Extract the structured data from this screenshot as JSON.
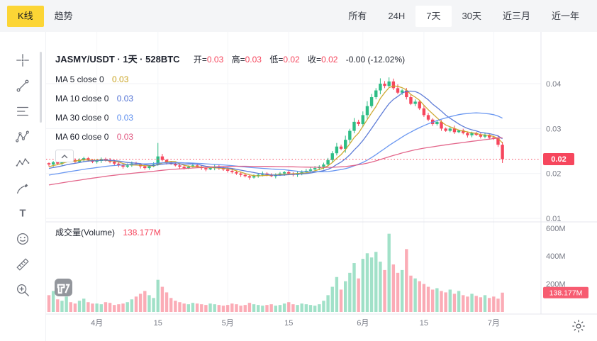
{
  "colors": {
    "up": "#2ebd85",
    "down": "#f6465d",
    "accent": "#fcd535"
  },
  "topbar": {
    "chart_tabs": [
      {
        "label": "K线"
      },
      {
        "label": "趋势"
      }
    ],
    "selected_chart_tab": "K线",
    "range_tabs": [
      {
        "label": "所有"
      },
      {
        "label": "24H"
      },
      {
        "label": "7天"
      },
      {
        "label": "30天"
      },
      {
        "label": "近三月"
      },
      {
        "label": "近一年"
      }
    ],
    "selected_range": "7天"
  },
  "header": {
    "symbol": "JASMY/USDT · 1天 · 528BTC",
    "ohlc": [
      {
        "label": "开=",
        "value": "0.03"
      },
      {
        "label": "高=",
        "value": "0.03"
      },
      {
        "label": "低=",
        "value": "0.02"
      },
      {
        "label": "收=",
        "value": "0.02"
      }
    ],
    "change": "-0.00 (-12.02%)"
  },
  "indicators": [
    {
      "label": "MA 5 close 0",
      "value": "0.03",
      "color": "#c9a21f"
    },
    {
      "label": "MA 10 close 0",
      "value": "0.03",
      "color": "#4e6fd3"
    },
    {
      "label": "MA 30 close 0",
      "value": "0.03",
      "color": "#5b8def"
    },
    {
      "label": "MA 60 close 0",
      "value": "0.03",
      "color": "#e0557e"
    }
  ],
  "volume_header": {
    "label": "成交量(Volume)",
    "value": "138.177M"
  },
  "price_axis": {
    "ticks": [
      "0.04",
      "0.03",
      "0.02",
      "0.01"
    ],
    "badge": "0.02"
  },
  "volume_axis": {
    "ticks": [
      "600M",
      "400M",
      "200M"
    ],
    "badge": "138.177M"
  },
  "toolbar": {
    "icons": [
      "crosshair",
      "trend-line",
      "fib-retracement",
      "xabcd-pattern",
      "elliott-wave",
      "brush",
      "text",
      "emoji",
      "ruler",
      "zoom-in"
    ]
  },
  "misc_icons": [
    "collapse-chevron",
    "tradingview-logo",
    "settings-gear"
  ],
  "chart_data": {
    "type": "candlestick+volume",
    "symbol": "JASMY/USDT",
    "interval": "1天",
    "title": "JASMY/USDT · 1天 · 528BTC",
    "x_tick_labels": [
      "4月",
      "15",
      "5月",
      "15",
      "6月",
      "15",
      "7月"
    ],
    "x_tick_indices": [
      11,
      25,
      41,
      55,
      72,
      86,
      102
    ],
    "price_ticks": [
      0.01,
      0.02,
      0.03,
      0.04
    ],
    "volume_ticks_m": [
      200,
      400,
      600
    ],
    "last_price": 0.0232,
    "last_volume_m": 138.177,
    "ma_windows": [
      5,
      10,
      30,
      60
    ],
    "ma_prehistory_start": 0.013,
    "ma_prehistory_end": 0.0216,
    "up_color": "#2ebd85",
    "down_color": "#f6465d",
    "closes": [
      0.022,
      0.0225,
      0.0222,
      0.0228,
      0.0232,
      0.023,
      0.0226,
      0.023,
      0.0234,
      0.023,
      0.0226,
      0.0228,
      0.0232,
      0.023,
      0.0226,
      0.0222,
      0.0218,
      0.0215,
      0.0218,
      0.0222,
      0.022,
      0.0216,
      0.0212,
      0.0216,
      0.022,
      0.0238,
      0.023,
      0.0225,
      0.0222,
      0.0218,
      0.0215,
      0.0212,
      0.0215,
      0.0218,
      0.0215,
      0.0212,
      0.0209,
      0.0212,
      0.0215,
      0.0212,
      0.0209,
      0.0206,
      0.0203,
      0.02,
      0.0197,
      0.0194,
      0.0191,
      0.0194,
      0.0197,
      0.02,
      0.0197,
      0.0194,
      0.0197,
      0.02,
      0.0203,
      0.02,
      0.0197,
      0.02,
      0.0203,
      0.0206,
      0.0209,
      0.0212,
      0.0215,
      0.022,
      0.023,
      0.0245,
      0.026,
      0.0255,
      0.0275,
      0.0295,
      0.0315,
      0.031,
      0.033,
      0.035,
      0.037,
      0.0385,
      0.04,
      0.0395,
      0.0405,
      0.039,
      0.038,
      0.0385,
      0.037,
      0.0355,
      0.036,
      0.0345,
      0.033,
      0.032,
      0.031,
      0.0315,
      0.03,
      0.0295,
      0.03,
      0.0292,
      0.0296,
      0.029,
      0.0285,
      0.029,
      0.0286,
      0.0282,
      0.0286,
      0.028,
      0.0278,
      0.0264,
      0.0232
    ],
    "volumes_m": [
      120,
      150,
      90,
      80,
      110,
      70,
      60,
      80,
      95,
      70,
      60,
      60,
      55,
      70,
      65,
      50,
      55,
      60,
      70,
      90,
      110,
      130,
      150,
      120,
      100,
      230,
      180,
      140,
      100,
      80,
      70,
      60,
      55,
      65,
      60,
      55,
      50,
      60,
      55,
      50,
      45,
      50,
      60,
      55,
      45,
      50,
      65,
      55,
      50,
      45,
      50,
      55,
      45,
      50,
      60,
      70,
      55,
      50,
      60,
      55,
      50,
      45,
      55,
      80,
      120,
      180,
      250,
      160,
      220,
      280,
      350,
      240,
      380,
      420,
      390,
      430,
      360,
      300,
      560,
      340,
      280,
      300,
      450,
      260,
      240,
      220,
      200,
      180,
      160,
      170,
      150,
      140,
      160,
      130,
      150,
      120,
      110,
      130,
      115,
      105,
      120,
      100,
      110,
      95,
      138.177
    ],
    "wick_spikes": {
      "25": 0.0268,
      "76": 0.0412,
      "78": 0.0414
    }
  }
}
